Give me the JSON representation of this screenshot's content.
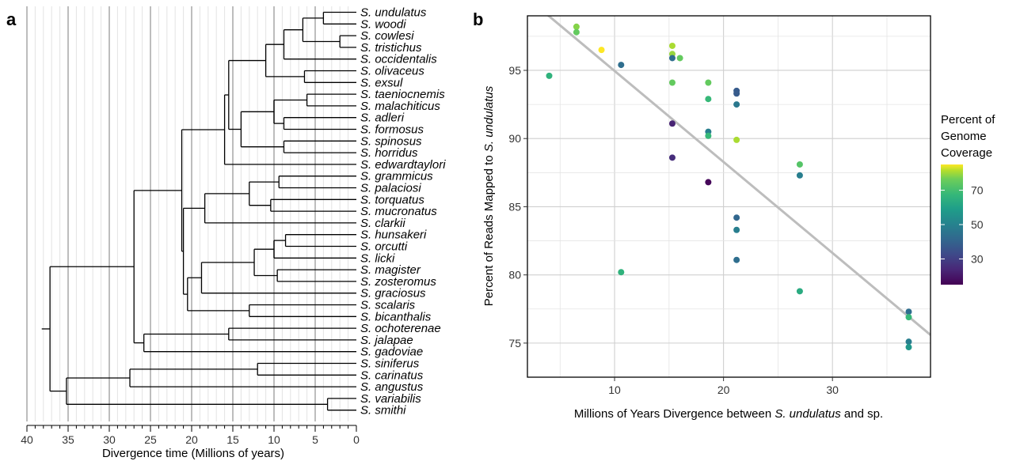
{
  "panel_a": {
    "label": "a",
    "xlabel": "Divergence time (Millions of years)",
    "ticks": [
      40,
      35,
      30,
      25,
      20,
      15,
      10,
      5,
      0
    ],
    "tick_labels": [
      "40",
      "35",
      "30",
      "25",
      "20",
      "15",
      "10",
      "5",
      "0"
    ],
    "genus": "S.",
    "species": [
      "undulatus",
      "woodi",
      "cowlesi",
      "tristichus",
      "occidentalis",
      "olivaceus",
      "exsul",
      "taeniocnemis",
      "malachiticus",
      "adleri",
      "formosus",
      "spinosus",
      "horridus",
      "edwardtaylori",
      "grammicus",
      "palaciosi",
      "torquatus",
      "mucronatus",
      "clarkii",
      "hunsakeri",
      "orcutti",
      "licki",
      "magister",
      "zosteromus",
      "graciosus",
      "scalaris",
      "bicanthalis",
      "ochoterenae",
      "jalapae",
      "gadoviae",
      "siniferus",
      "carinatus",
      "angustus",
      "variabilis",
      "smithi"
    ]
  },
  "panel_b": {
    "label": "b",
    "xlabel_pre": "Millions of Years Divergence between ",
    "xlabel_ital": "S. undulatus",
    "xlabel_post": " and sp.",
    "ylabel_pre": "Percent of Reads Mapped to ",
    "ylabel_ital": "S. undulatus",
    "legend_title": [
      "Percent of",
      "Genome",
      "Coverage"
    ],
    "legend_ticks": [
      "70",
      "50",
      "30"
    ],
    "colors": {
      "trend": "#bdbdbd",
      "grid": "#d9d9d9"
    }
  },
  "chart_data": [
    {
      "type": "dendrogram",
      "xlabel": "Divergence time (Millions of years)",
      "xlim": [
        40,
        0
      ],
      "tips": [
        "S. undulatus",
        "S. woodi",
        "S. cowlesi",
        "S. tristichus",
        "S. occidentalis",
        "S. olivaceus",
        "S. exsul",
        "S. taeniocnemis",
        "S. malachiticus",
        "S. adleri",
        "S. formosus",
        "S. spinosus",
        "S. horridus",
        "S. edwardtaylori",
        "S. grammicus",
        "S. palaciosi",
        "S. torquatus",
        "S. mucronatus",
        "S. clarkii",
        "S. hunsakeri",
        "S. orcutti",
        "S. licki",
        "S. magister",
        "S. zosteromus",
        "S. graciosus",
        "S. scalaris",
        "S. bicanthalis",
        "S. ochoterenae",
        "S. jalapae",
        "S. gadoviae",
        "S. siniferus",
        "S. carinatus",
        "S. angustus",
        "S. variabilis",
        "S. smithi"
      ],
      "node_ages": {
        "undulatus_woodi": 4.0,
        "cowlesi_tristichus": 2.0,
        "tristichus_group": 6.5,
        "plus_occidentalis": 8.8,
        "olivaceus_exsul": 6.3,
        "undulatus_olivaceus": 11.0,
        "taeniocnemis_malachiticus": 6.0,
        "adleri_formosus": 8.8,
        "taenio_adleri": 10.0,
        "spinosus_horridus": 8.8,
        "malachiticus_group": 14.0,
        "formosus_group": 15.5,
        "plus_edwardtaylori": 16.0,
        "grammicus_palaciosi": 9.4,
        "torquatus_mucronatus": 10.4,
        "grammicus_torquatus": 13.0,
        "plus_clarkii": 15.8,
        "torquatus_group": 18.4,
        "hunsakeri_orcutti": 8.6,
        "plus_licki": 10.0,
        "magister_zosteromus": 9.6,
        "orcutti_magister": 12.4,
        "plus_graciosus": 18.8,
        "scalaris_bicanthalis": 13.0,
        "graciosus_scalaris": 20.5,
        "torquatus_graciosus": 21.0,
        "core_clade": 21.2,
        "ochoterenae_jalapae": 15.5,
        "plus_gadoviae": 25.8,
        "undulatus_gadoviae": 27.0,
        "siniferus_carinatus": 12.0,
        "plus_angustus": 27.5,
        "variabilis_smithi": 3.5,
        "siniferus_variabilis": 35.2,
        "root": 37.2
      }
    },
    {
      "type": "scatter",
      "xlabel": "Millions of Years Divergence between S. undulatus and sp.",
      "ylabel": "Percent of Reads Mapped to S. undulatus",
      "xlim": [
        2,
        39
      ],
      "ylim": [
        72.5,
        99
      ],
      "xticks": [
        10,
        20,
        30
      ],
      "yticks": [
        75,
        80,
        85,
        90,
        95
      ],
      "color_label": "Percent of Genome Coverage",
      "color_range": [
        15,
        85
      ],
      "trend_line": {
        "x": [
          2,
          39
        ],
        "y": [
          100.3,
          75.6
        ]
      },
      "points": [
        {
          "x": 4.0,
          "y": 94.6,
          "c": 60
        },
        {
          "x": 6.5,
          "y": 98.2,
          "c": 72
        },
        {
          "x": 6.5,
          "y": 97.8,
          "c": 68
        },
        {
          "x": 8.8,
          "y": 96.5,
          "c": 85
        },
        {
          "x": 10.6,
          "y": 95.4,
          "c": 40
        },
        {
          "x": 10.6,
          "y": 80.2,
          "c": 60
        },
        {
          "x": 15.3,
          "y": 96.8,
          "c": 76
        },
        {
          "x": 15.3,
          "y": 96.2,
          "c": 74
        },
        {
          "x": 15.3,
          "y": 95.9,
          "c": 40
        },
        {
          "x": 16.0,
          "y": 95.9,
          "c": 68
        },
        {
          "x": 15.3,
          "y": 94.1,
          "c": 68
        },
        {
          "x": 15.3,
          "y": 91.1,
          "c": 22
        },
        {
          "x": 15.3,
          "y": 88.6,
          "c": 24
        },
        {
          "x": 18.6,
          "y": 94.1,
          "c": 68
        },
        {
          "x": 18.6,
          "y": 92.9,
          "c": 62
        },
        {
          "x": 18.6,
          "y": 90.5,
          "c": 45
        },
        {
          "x": 18.6,
          "y": 90.2,
          "c": 62
        },
        {
          "x": 18.6,
          "y": 86.8,
          "c": 16
        },
        {
          "x": 21.2,
          "y": 93.5,
          "c": 35
        },
        {
          "x": 21.2,
          "y": 93.3,
          "c": 35
        },
        {
          "x": 21.2,
          "y": 92.5,
          "c": 43
        },
        {
          "x": 21.2,
          "y": 89.9,
          "c": 76
        },
        {
          "x": 21.2,
          "y": 84.2,
          "c": 38
        },
        {
          "x": 21.2,
          "y": 83.3,
          "c": 45
        },
        {
          "x": 21.2,
          "y": 81.1,
          "c": 40
        },
        {
          "x": 27.0,
          "y": 88.1,
          "c": 66
        },
        {
          "x": 27.0,
          "y": 87.3,
          "c": 45
        },
        {
          "x": 27.0,
          "y": 78.8,
          "c": 58
        },
        {
          "x": 37.0,
          "y": 77.3,
          "c": 40
        },
        {
          "x": 37.0,
          "y": 76.9,
          "c": 62
        },
        {
          "x": 37.0,
          "y": 75.1,
          "c": 45
        },
        {
          "x": 37.0,
          "y": 74.7,
          "c": 52
        }
      ]
    }
  ]
}
